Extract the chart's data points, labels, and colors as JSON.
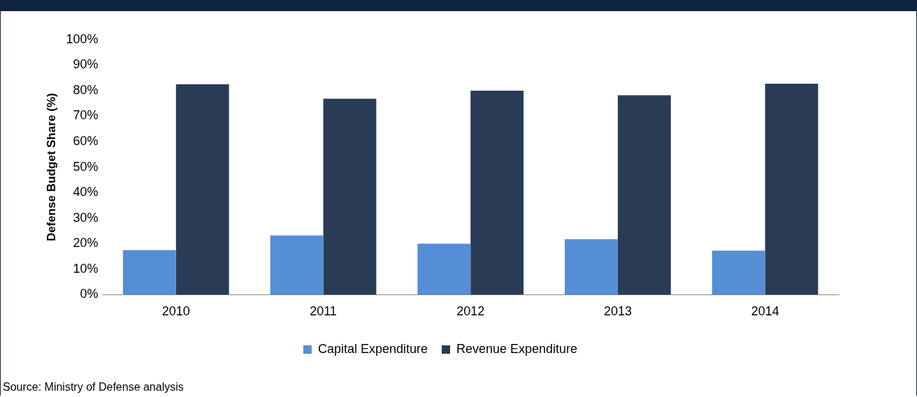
{
  "chart_data": {
    "type": "bar",
    "ylabel": "Defense Budget Share (%)",
    "categories": [
      "2010",
      "2011",
      "2012",
      "2013",
      "2014"
    ],
    "series": [
      {
        "name": "Capital Expenditure",
        "color": "#558ed5",
        "values": [
          17.5,
          23.2,
          20.0,
          21.8,
          17.3
        ]
      },
      {
        "name": "Revenue Expenditure",
        "color": "#2a3b55",
        "values": [
          82.5,
          76.8,
          80.0,
          78.2,
          82.7
        ]
      }
    ],
    "ylim": [
      0,
      100
    ],
    "yticks": [
      {
        "value": 0,
        "label": "0%"
      },
      {
        "value": 10,
        "label": "10%"
      },
      {
        "value": 20,
        "label": "20%"
      },
      {
        "value": 30,
        "label": "30%"
      },
      {
        "value": 40,
        "label": "40%"
      },
      {
        "value": 50,
        "label": "50%"
      },
      {
        "value": 60,
        "label": "60%"
      },
      {
        "value": 70,
        "label": "70%"
      },
      {
        "value": 80,
        "label": "80%"
      },
      {
        "value": 90,
        "label": "90%"
      },
      {
        "value": 100,
        "label": "100%"
      }
    ],
    "grid": false,
    "legend": "bottom",
    "annotations": [
      "Source: Ministry of Defense analysis"
    ]
  }
}
